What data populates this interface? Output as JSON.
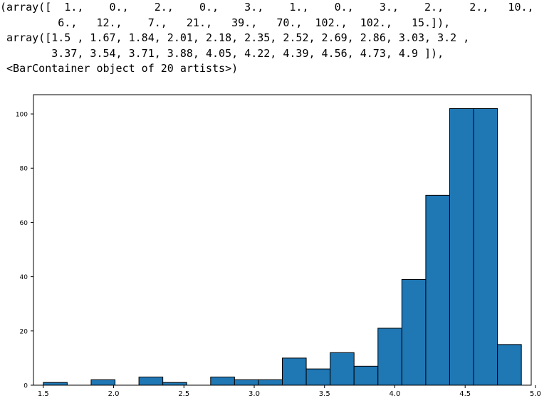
{
  "output": {
    "lines": [
      "(array([  1.,    0.,    2.,    0.,    3.,    1.,    0.,    3.,    2.,    2.,   10.,",
      "         6.,   12.,    7.,   21.,   39.,   70.,  102.,  102.,   15.]),",
      " array([1.5 , 1.67, 1.84, 2.01, 2.18, 2.35, 2.52, 2.69, 2.86, 3.03, 3.2 ,",
      "        3.37, 3.54, 3.71, 3.88, 4.05, 4.22, 4.39, 4.56, 4.73, 4.9 ]),",
      " <BarContainer object of 20 artists>)"
    ]
  },
  "chart_data": {
    "type": "bar",
    "title": "",
    "xlabel": "",
    "ylabel": "",
    "bin_edges": [
      1.5,
      1.67,
      1.84,
      2.01,
      2.18,
      2.35,
      2.52,
      2.69,
      2.86,
      3.03,
      3.2,
      3.37,
      3.54,
      3.71,
      3.88,
      4.05,
      4.22,
      4.39,
      4.56,
      4.73,
      4.9
    ],
    "values": [
      1,
      0,
      2,
      0,
      3,
      1,
      0,
      3,
      2,
      2,
      10,
      6,
      12,
      7,
      21,
      39,
      70,
      102,
      102,
      15
    ],
    "xlim": [
      1.43,
      4.97
    ],
    "ylim": [
      0,
      107.1
    ],
    "xticks": [
      "1.5",
      "2.0",
      "2.5",
      "3.0",
      "3.5",
      "4.0",
      "4.5",
      "5.0"
    ],
    "xtick_values": [
      1.5,
      2.0,
      2.5,
      3.0,
      3.5,
      4.0,
      4.5,
      5.0
    ],
    "yticks": [
      "0",
      "20",
      "40",
      "60",
      "80",
      "100"
    ],
    "ytick_values": [
      0,
      20,
      40,
      60,
      80,
      100
    ],
    "bar_color": "#1f77b4",
    "edge_color": "#000000",
    "grid": false
  }
}
